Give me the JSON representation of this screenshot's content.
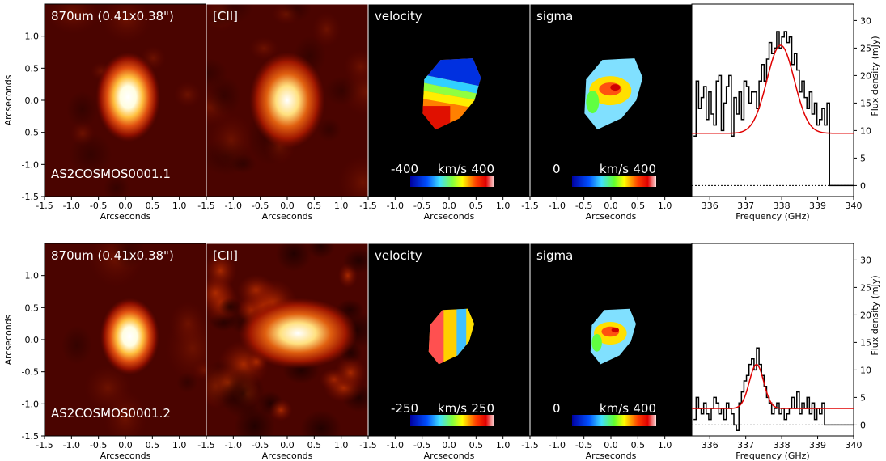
{
  "chart_data": [
    {
      "type": "figure-row",
      "row": 1,
      "source_name": "AS2COSMOS0001.1",
      "panels": [
        {
          "kind": "image",
          "cmap": "hot",
          "title": "870um (0.41x0.38\")",
          "blob": {
            "x": 0.05,
            "y": 0.05,
            "rx": 0.12,
            "ry": 0.14
          },
          "label": "AS2COSMOS0001.1",
          "xlabel": "Arcseconds",
          "ylabel": "Arcseconds"
        },
        {
          "kind": "image",
          "cmap": "hot",
          "title": "[CII]",
          "blob": {
            "x": 0.0,
            "y": 0.0,
            "rx": 0.14,
            "ry": 0.15
          },
          "xlabel": "Arcseconds"
        },
        {
          "kind": "image",
          "cmap": "velocity",
          "title": "velocity",
          "colorbar": {
            "min": "-400",
            "unit": "km/s",
            "max": "400"
          },
          "xlabel": "Arcseconds"
        },
        {
          "kind": "image",
          "cmap": "sigma",
          "title": "sigma",
          "colorbar": {
            "min": "0",
            "unit": "km/s",
            "max": "400"
          },
          "xlabel": "Arcseconds"
        }
      ],
      "image_axes": {
        "xlim": [
          -1.5,
          1.5
        ],
        "ylim": [
          -1.5,
          1.5
        ],
        "xticks": [
          "-1.5",
          "-1.0",
          "-0.5",
          "0.0",
          "0.5",
          "1.0"
        ],
        "yticks": [
          "-1.5",
          "-1.0",
          "-0.5",
          "0.0",
          "0.5",
          "1.0"
        ]
      },
      "spectrum": {
        "xlabel": "Frequency (GHz)",
        "ylabel": "Flux density (mJy)",
        "xlim": [
          335.5,
          340
        ],
        "ylim": [
          -2,
          33
        ],
        "xticks": [
          "336",
          "337",
          "338",
          "339",
          "340"
        ],
        "yticks": [
          "0",
          "5",
          "10",
          "15",
          "20",
          "25",
          "30"
        ],
        "data_x": [
          335.55,
          335.62,
          335.69,
          335.76,
          335.83,
          335.9,
          335.97,
          336.04,
          336.11,
          336.18,
          336.25,
          336.32,
          336.39,
          336.46,
          336.53,
          336.6,
          336.67,
          336.74,
          336.81,
          336.88,
          336.95,
          337.02,
          337.09,
          337.16,
          337.23,
          337.3,
          337.37,
          337.44,
          337.51,
          337.58,
          337.65,
          337.72,
          337.79,
          337.86,
          337.93,
          338.0,
          338.07,
          338.14,
          338.21,
          338.28,
          338.35,
          338.42,
          338.49,
          338.56,
          338.63,
          338.7,
          338.77,
          338.84,
          338.91,
          338.98,
          339.05,
          339.12,
          339.19,
          339.26,
          339.33,
          339.5,
          339.7,
          339.9
        ],
        "data_y": [
          9,
          19,
          14,
          16,
          18,
          12,
          17,
          13,
          11,
          19,
          20,
          10,
          15,
          18,
          20,
          9,
          16,
          13,
          17,
          12,
          19,
          18,
          15,
          17,
          17,
          14,
          19,
          22,
          19,
          23,
          26,
          24,
          25,
          28,
          25,
          27,
          28,
          26,
          27,
          22,
          24,
          21,
          17,
          19,
          16,
          14,
          17,
          13,
          15,
          11,
          12,
          14,
          11,
          15,
          0,
          0,
          0,
          0
        ],
        "fit": {
          "amplitude": 16,
          "center": 337.97,
          "sigma": 0.38,
          "baseline": 9.5
        }
      }
    },
    {
      "type": "figure-row",
      "row": 2,
      "source_name": "AS2COSMOS0001.2",
      "panels": [
        {
          "kind": "image",
          "cmap": "hot",
          "title": "870um (0.41x0.38\")",
          "blob": {
            "x": 0.08,
            "y": 0.05,
            "rx": 0.11,
            "ry": 0.12
          },
          "label": "AS2COSMOS0001.2",
          "xlabel": "Arcseconds",
          "ylabel": "Arcseconds"
        },
        {
          "kind": "image",
          "cmap": "hot",
          "title": "[CII]",
          "blob": {
            "x": 0.2,
            "y": 0.1,
            "rx": 0.22,
            "ry": 0.11
          },
          "xlabel": "Arcseconds"
        },
        {
          "kind": "image",
          "cmap": "velocity",
          "title": "velocity",
          "colorbar": {
            "min": "-250",
            "unit": "km/s",
            "max": "250"
          },
          "xlabel": "Arcseconds"
        },
        {
          "kind": "image",
          "cmap": "sigma",
          "title": "sigma",
          "colorbar": {
            "min": "0",
            "unit": "km/s",
            "max": "400"
          },
          "xlabel": "Arcseconds"
        }
      ],
      "image_axes": {
        "xlim": [
          -1.5,
          1.5
        ],
        "ylim": [
          -1.5,
          1.5
        ],
        "xticks": [
          "-1.5",
          "-1.0",
          "-0.5",
          "0.0",
          "0.5",
          "1.0"
        ],
        "yticks": [
          "-1.5",
          "-1.0",
          "-0.5",
          "0.0",
          "0.5",
          "1.0"
        ]
      },
      "spectrum": {
        "xlabel": "Frequency (GHz)",
        "ylabel": "Flux density (mJy)",
        "xlim": [
          335.5,
          340
        ],
        "ylim": [
          -2,
          33
        ],
        "xticks": [
          "336",
          "337",
          "338",
          "339",
          "340"
        ],
        "yticks": [
          "0",
          "5",
          "10",
          "15",
          "20",
          "25",
          "30"
        ],
        "data_x": [
          335.55,
          335.62,
          335.69,
          335.76,
          335.83,
          335.9,
          335.97,
          336.04,
          336.11,
          336.18,
          336.25,
          336.32,
          336.39,
          336.46,
          336.53,
          336.6,
          336.67,
          336.74,
          336.81,
          336.88,
          336.95,
          337.02,
          337.09,
          337.16,
          337.23,
          337.3,
          337.37,
          337.44,
          337.51,
          337.58,
          337.65,
          337.72,
          337.79,
          337.86,
          337.93,
          338.0,
          338.07,
          338.14,
          338.21,
          338.28,
          338.35,
          338.42,
          338.49,
          338.56,
          338.63,
          338.7,
          338.77,
          338.84,
          338.91,
          338.98,
          339.05,
          339.12,
          339.19,
          339.26,
          339.33,
          339.5,
          339.7,
          339.9
        ],
        "data_y": [
          1,
          5,
          3,
          2,
          4,
          2,
          1,
          3,
          5,
          4,
          2,
          3,
          1,
          4,
          3,
          2,
          0,
          -1,
          4,
          6,
          8,
          9,
          11,
          12,
          10,
          14,
          11,
          9,
          7,
          5,
          4,
          2,
          3,
          4,
          2,
          3,
          1,
          2,
          3,
          5,
          3,
          6,
          2,
          4,
          3,
          5,
          2,
          4,
          1,
          3,
          2,
          4,
          0,
          0,
          0,
          0,
          0,
          0
        ],
        "fit": {
          "amplitude": 8,
          "center": 337.3,
          "sigma": 0.2,
          "baseline": 3
        }
      }
    }
  ]
}
